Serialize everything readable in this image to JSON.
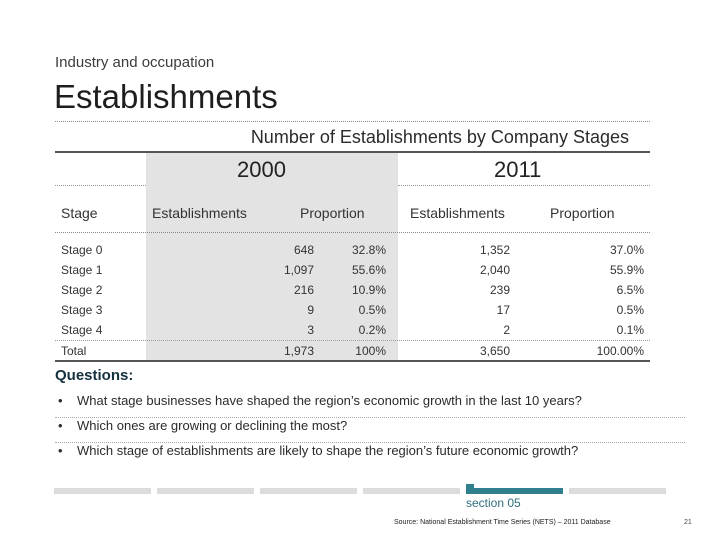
{
  "header": {
    "subtitle": "Industry and occupation",
    "title": "Establishments"
  },
  "table": {
    "title": "Number of Establishments by Company Stages",
    "years": [
      "2000",
      "2011"
    ],
    "columns": [
      "Stage",
      "Establishments",
      "Proportion",
      "Establishments",
      "Proportion"
    ],
    "rows": [
      [
        "Stage 0",
        "648",
        "32.8%",
        "1,352",
        "37.0%"
      ],
      [
        "Stage 1",
        "1,097",
        "55.6%",
        "2,040",
        "55.9%"
      ],
      [
        "Stage 2",
        "216",
        "10.9%",
        "239",
        "6.5%"
      ],
      [
        "Stage 3",
        "9",
        "0.5%",
        "17",
        "0.5%"
      ],
      [
        "Stage 4",
        "3",
        "0.2%",
        "2",
        "0.1%"
      ],
      [
        "Total",
        "1,973",
        "100%",
        "3,650",
        "100.00%"
      ]
    ]
  },
  "questions": {
    "heading": "Questions:",
    "bullet": "•",
    "items": [
      "What stage businesses have shaped the region’s economic growth in the last 10 years?",
      "Which ones are growing or declining the most?",
      "Which stage of establishments are likely to shape the region’s future economic growth?"
    ]
  },
  "footer": {
    "section_label": "section 05",
    "source": "Source: National Establishment Time Series (NETS) – 2011 Database",
    "page_number": "21",
    "colors": {
      "accent": "#2f7f8c",
      "inactive": "#dcdcdc"
    }
  }
}
